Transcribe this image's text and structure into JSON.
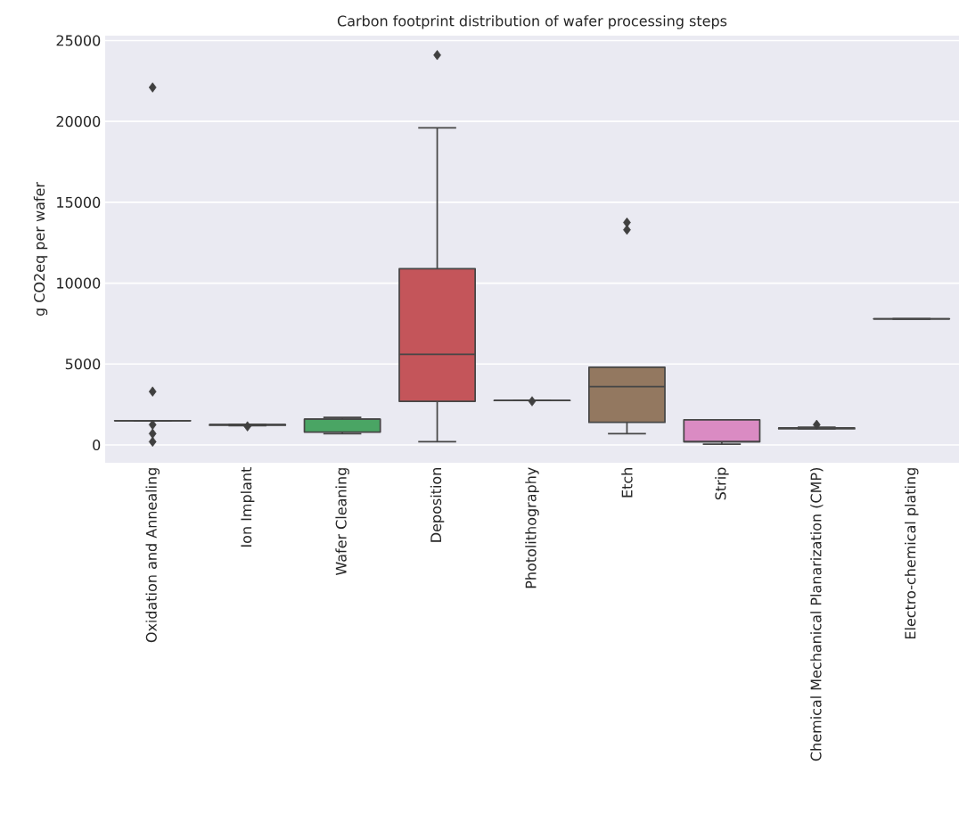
{
  "chart_data": {
    "type": "box",
    "title": "Carbon footprint distribution of wafer processing steps",
    "ylabel": "g CO2eq per wafer",
    "categories": [
      "Oxidation and Annealing",
      "Ion Implant",
      "Wafer Cleaning",
      "Deposition",
      "Photolithography",
      "Etch",
      "Strip",
      "Chemical Mechanical Planarization (CMP)",
      "Electro-chemical plating"
    ],
    "boxes": [
      {
        "low": 1500,
        "q1": 1500,
        "median": 1500,
        "q3": 1500,
        "high": 1500,
        "outliers": [
          22100,
          3300,
          1250,
          700,
          200
        ]
      },
      {
        "low": 1200,
        "q1": 1220,
        "median": 1250,
        "q3": 1260,
        "high": 1280,
        "outliers": [
          1150
        ]
      },
      {
        "low": 700,
        "q1": 800,
        "median": 1600,
        "q3": 1600,
        "high": 1700
      },
      {
        "low": 200,
        "q1": 2700,
        "median": 5600,
        "q3": 10900,
        "high": 19600,
        "outliers": [
          24100
        ]
      },
      {
        "low": 2750,
        "q1": 2750,
        "median": 2750,
        "q3": 2750,
        "high": 2750,
        "outliers": [
          2700
        ]
      },
      {
        "low": 700,
        "q1": 1400,
        "median": 3600,
        "q3": 4800,
        "high": 4800,
        "outliers": [
          13750,
          13300
        ]
      },
      {
        "low": 50,
        "q1": 200,
        "median": 200,
        "q3": 1550,
        "high": 1550
      },
      {
        "low": 1000,
        "q1": 1000,
        "median": 1050,
        "q3": 1050,
        "high": 1100,
        "outliers": [
          1250
        ]
      },
      {
        "low": 7800,
        "q1": 7800,
        "median": 7800,
        "q3": 7800,
        "high": 7800
      }
    ],
    "colors": [
      null,
      "#dd8452",
      "#4aa564",
      "#c4555a",
      null,
      "#937860",
      "#da8bc3",
      "#8c8c8c",
      null
    ],
    "ylim": [
      -1100,
      25300
    ],
    "yticks": [
      0,
      5000,
      10000,
      15000,
      20000,
      25000
    ],
    "grid": "y",
    "marker": "diamond"
  }
}
